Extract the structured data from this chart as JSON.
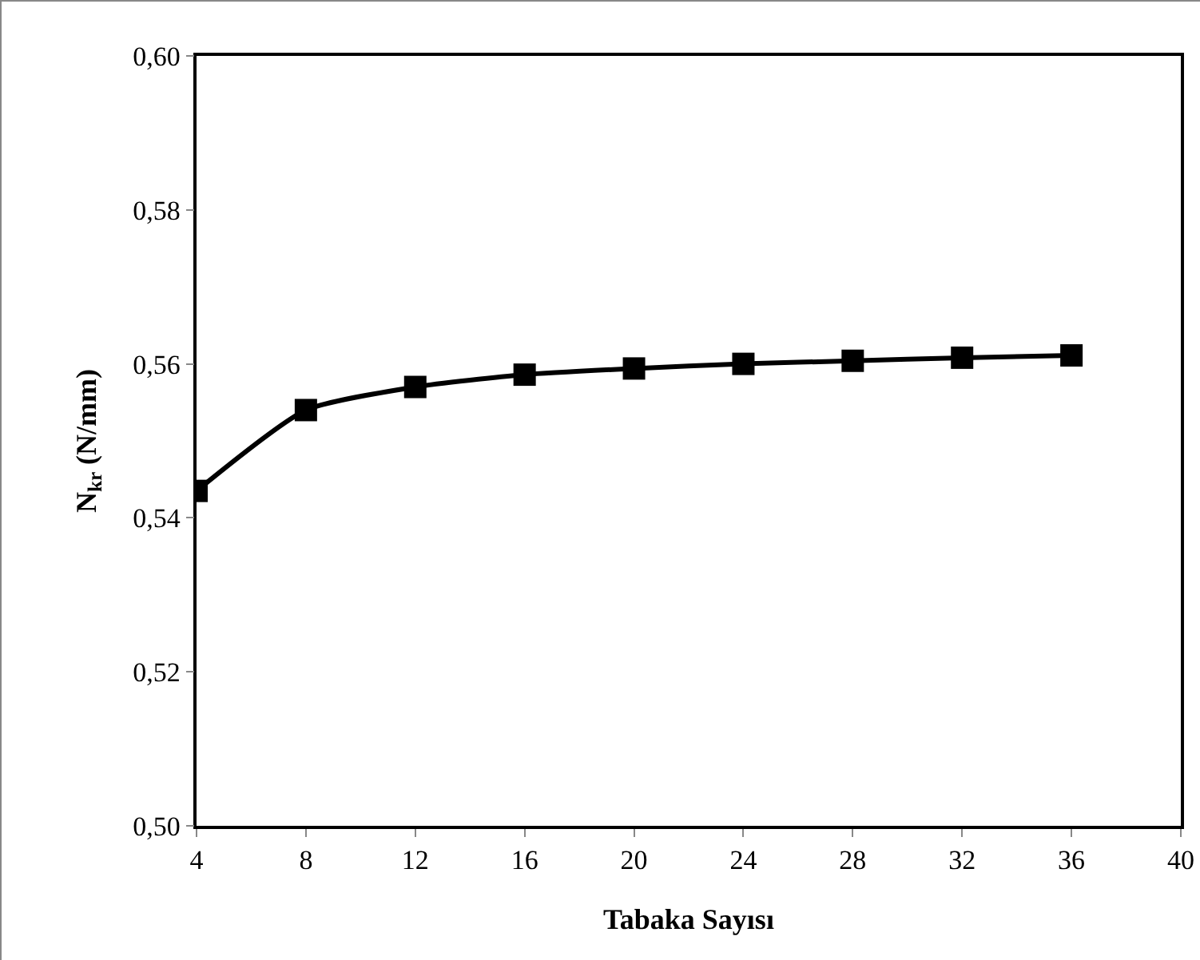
{
  "chart_data": {
    "type": "line",
    "xlabel": "Tabaka Sayısı",
    "ylabel": "N$_{kr}$ (N/mm)",
    "x": [
      4,
      8,
      12,
      16,
      20,
      24,
      28,
      32,
      36
    ],
    "series": [
      {
        "color": "#000000",
        "values": [
          0.5435,
          0.554,
          0.557,
          0.5586,
          0.5594,
          0.56,
          0.5604,
          0.5608,
          0.5611
        ]
      }
    ],
    "xlim": [
      4,
      40
    ],
    "xticks": [
      4,
      8,
      12,
      16,
      20,
      24,
      28,
      32,
      36,
      40
    ],
    "ylim": [
      0.5,
      0.6
    ],
    "yticks": [
      {
        "value": 0.5,
        "label": "0,50"
      },
      {
        "value": 0.52,
        "label": "0,52"
      },
      {
        "value": 0.54,
        "label": "0,54"
      },
      {
        "value": 0.56,
        "label": "0,56"
      },
      {
        "value": 0.58,
        "label": "0,58"
      },
      {
        "value": 0.6,
        "label": "0,60"
      }
    ],
    "grid": false,
    "marker": "square",
    "line_style": "solid"
  }
}
